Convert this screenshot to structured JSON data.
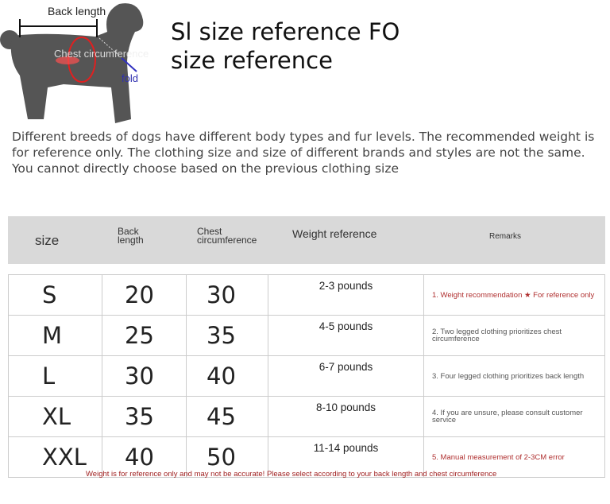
{
  "diagram": {
    "back_length": "Back length",
    "chest": "Chest circumference",
    "fold": "fold"
  },
  "title": "Sl size reference FO size reference",
  "description": "Different breeds of dogs have different body types and fur levels. The recommended weight is for reference only. The clothing size and size of different brands and styles are not the same. You cannot directly choose based on the previous clothing size",
  "table": {
    "headers": [
      "size",
      "Back length",
      "Chest circumference",
      "Weight reference",
      "Remarks"
    ],
    "rows": [
      {
        "size": "S",
        "back": "20",
        "chest": "30",
        "weight": "2-3 pounds",
        "remark": "1. Weight recommendation ★ For reference only"
      },
      {
        "size": "M",
        "back": "25",
        "chest": "35",
        "weight": "4-5 pounds",
        "remark": "2. Two legged clothing prioritizes chest circumference"
      },
      {
        "size": "L",
        "back": "30",
        "chest": "40",
        "weight": "6-7 pounds",
        "remark": "3. Four legged clothing prioritizes back length"
      },
      {
        "size": "XL",
        "back": "35",
        "chest": "45",
        "weight": "8-10 pounds",
        "remark": "4. If you are unsure, please consult customer service"
      },
      {
        "size": "XXL",
        "back": "40",
        "chest": "50",
        "weight": "11-14 pounds",
        "remark": "5. Manual measurement of 2-3CM error"
      }
    ]
  },
  "footer": "Weight is for reference only and may not be accurate! Please select according to your back length and chest circumference",
  "colors": {
    "header_bg": "#d9d9d9",
    "remark_red": "#b03030",
    "silhouette": "#555555"
  }
}
